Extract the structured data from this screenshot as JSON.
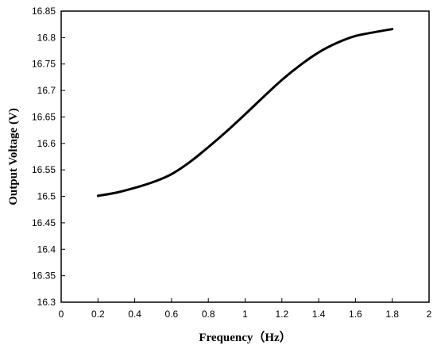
{
  "chart_data": {
    "type": "line",
    "title": "",
    "xlabel": "Frequency（Hz）",
    "ylabel": "Output Voltage (V)",
    "xlim": [
      0,
      2
    ],
    "ylim": [
      16.3,
      16.85
    ],
    "grid": false,
    "legend": "none",
    "x_ticks": [
      "0",
      "0.2",
      "0.4",
      "0.6",
      "0.8",
      "1",
      "1.2",
      "1.4",
      "1.6",
      "1.8",
      "2"
    ],
    "y_ticks": [
      "16.3",
      "16.35",
      "16.4",
      "16.45",
      "16.5",
      "16.55",
      "16.6",
      "16.65",
      "16.7",
      "16.75",
      "16.8",
      "16.85"
    ],
    "series": [
      {
        "color": "#000000",
        "x": [
          0.2,
          0.3,
          0.4,
          0.5,
          0.6,
          0.7,
          0.8,
          0.9,
          1.0,
          1.1,
          1.2,
          1.3,
          1.4,
          1.5,
          1.6,
          1.7,
          1.8
        ],
        "y": [
          16.501,
          16.507,
          16.516,
          16.527,
          16.542,
          16.565,
          16.593,
          16.623,
          16.655,
          16.688,
          16.72,
          16.748,
          16.772,
          16.79,
          16.803,
          16.81,
          16.816
        ]
      }
    ]
  }
}
